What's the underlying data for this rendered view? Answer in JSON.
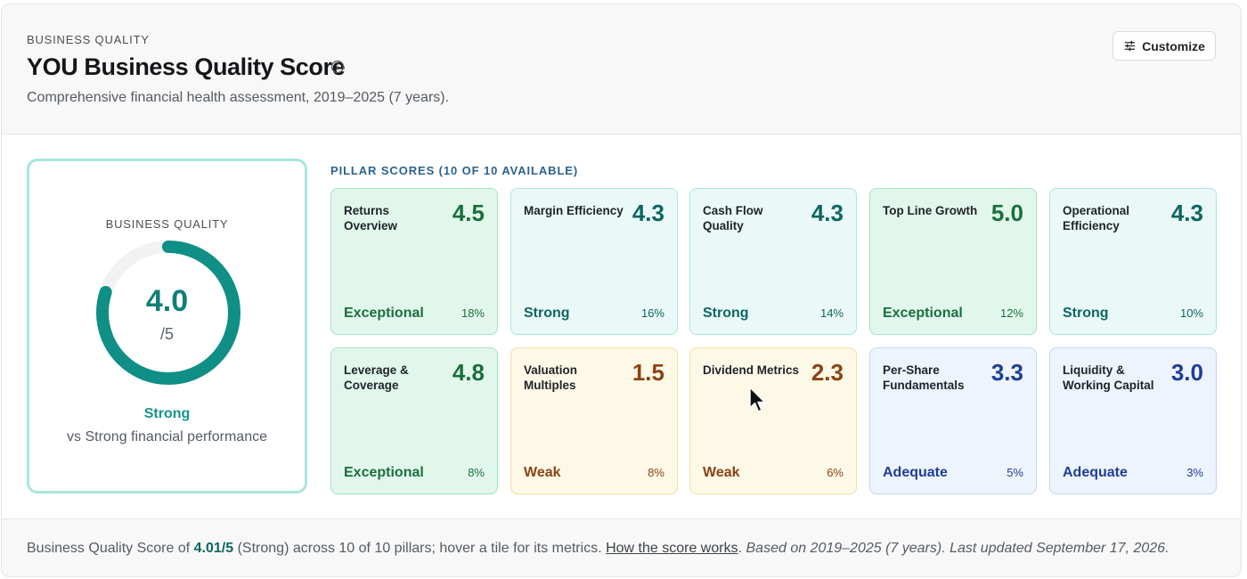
{
  "header": {
    "eyebrow": "BUSINESS QUALITY",
    "title": "YOU Business Quality Score",
    "info_icon": "info-circle-icon",
    "subtitle": "Comprehensive financial health assessment, 2019–2025 (7 years).",
    "customize_label": "Customize",
    "customize_icon": "sliders-icon"
  },
  "overall": {
    "eyebrow": "BUSINESS QUALITY",
    "score": "4.0",
    "max": "/5",
    "score_fraction_of_max": 0.8,
    "rating": "Strong",
    "caption": "vs Strong financial performance"
  },
  "pillars": {
    "heading": "PILLAR SCORES (10 OF 10 AVAILABLE)",
    "items": [
      {
        "name": "Returns Overview",
        "score": "4.5",
        "rating": "Exceptional",
        "weight": "18%"
      },
      {
        "name": "Margin Efficiency",
        "score": "4.3",
        "rating": "Strong",
        "weight": "16%"
      },
      {
        "name": "Cash Flow Quality",
        "score": "4.3",
        "rating": "Strong",
        "weight": "14%"
      },
      {
        "name": "Top Line Growth",
        "score": "5.0",
        "rating": "Exceptional",
        "weight": "12%"
      },
      {
        "name": "Operational Efficiency",
        "score": "4.3",
        "rating": "Strong",
        "weight": "10%"
      },
      {
        "name": "Leverage & Coverage",
        "score": "4.8",
        "rating": "Exceptional",
        "weight": "8%"
      },
      {
        "name": "Valuation Multiples",
        "score": "1.5",
        "rating": "Weak",
        "weight": "8%"
      },
      {
        "name": "Dividend Metrics",
        "score": "2.3",
        "rating": "Weak",
        "weight": "6%"
      },
      {
        "name": "Per-Share Fundamentals",
        "score": "3.3",
        "rating": "Adequate",
        "weight": "5%"
      },
      {
        "name": "Liquidity & Working Capital",
        "score": "3.0",
        "rating": "Adequate",
        "weight": "3%"
      }
    ]
  },
  "footer": {
    "prefix": "Business Quality Score of",
    "score": "4.01/5",
    "middle": "(Strong) across 10 of 10 pillars; hover a tile for its metrics.",
    "link": "How the score works",
    "suffix": "Based on 2019–2025 (7 years). Last updated September 17, 2026."
  },
  "colors": {
    "accent": "#0f7f77",
    "exceptional": "#1a6f3e",
    "strong": "#0e6662",
    "weak": "#8a4314",
    "adequate": "#1e3e99"
  }
}
